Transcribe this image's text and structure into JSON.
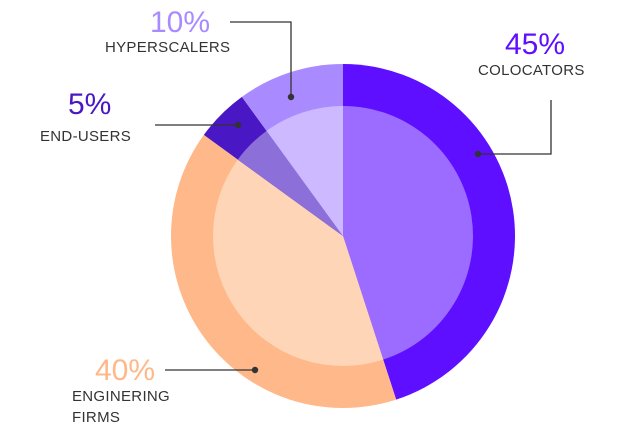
{
  "chart_data": {
    "type": "pie",
    "categories": [
      "COLOCATORS",
      "ENGINERING FIRMS",
      "END-USERS",
      "HYPERSCALERS"
    ],
    "values": [
      45,
      40,
      5,
      10
    ],
    "value_labels": [
      "45%",
      "40%",
      "5%",
      "10%"
    ],
    "colors": [
      "#5f0fff",
      "#ffb889",
      "#4a17c4",
      "#a98bff"
    ],
    "inner_colors": [
      "#9b6cff",
      "#ffd5b8",
      "#8c6fd9",
      "#cdb9ff"
    ]
  }
}
